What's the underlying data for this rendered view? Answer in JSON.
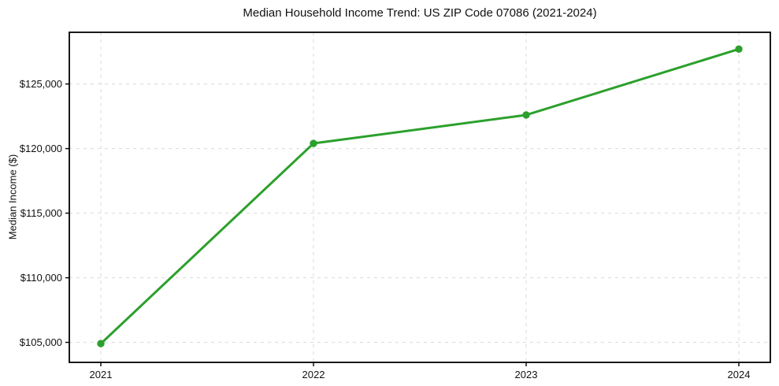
{
  "chart_data": {
    "type": "line",
    "title": "Median Household Income Trend: US ZIP Code 07086 (2021-2024)",
    "xlabel": "",
    "ylabel": "Median Income ($)",
    "categories": [
      "2021",
      "2022",
      "2023",
      "2024"
    ],
    "series": [
      {
        "name": "Median Household Income",
        "values": [
          104900,
          120400,
          122600,
          127700
        ]
      }
    ],
    "y_ticks": [
      105000,
      110000,
      115000,
      120000,
      125000
    ],
    "y_tick_labels": [
      "$105,000",
      "$110,000",
      "$115,000",
      "$120,000",
      "$125,000"
    ],
    "ylim": [
      103450,
      129000
    ],
    "grid": "dashed",
    "legend_position": "none",
    "colors": {
      "line": "#2ca02c",
      "marker": "#2ca02c",
      "grid": "#d9d9d9",
      "axis": "#000000",
      "text": "#111111",
      "background": "#ffffff"
    },
    "marker_style": "circle",
    "line_width": 3,
    "marker_radius": 4.7
  }
}
